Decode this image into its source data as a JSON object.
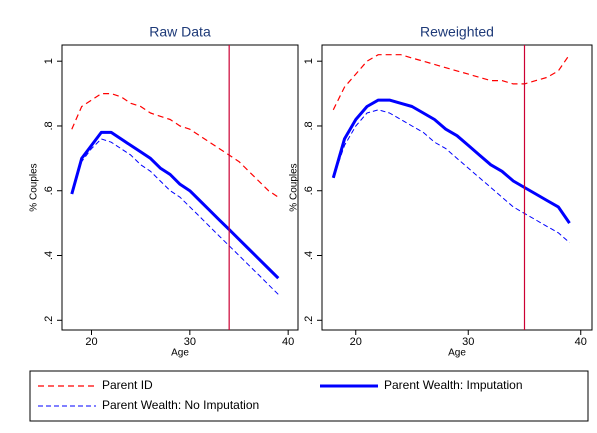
{
  "chart_data": [
    {
      "type": "line",
      "title": "Raw Data",
      "x_label": "Age",
      "y_label": "% Couples",
      "x": [
        18,
        19,
        20,
        21,
        22,
        23,
        24,
        25,
        26,
        27,
        28,
        29,
        30,
        31,
        32,
        33,
        34,
        35,
        36,
        37,
        38,
        39
      ],
      "series": [
        {
          "name": "Parent ID",
          "color": "#ff0000",
          "style": "dashed",
          "width": 1.2,
          "values": [
            0.79,
            0.86,
            0.88,
            0.9,
            0.9,
            0.89,
            0.87,
            0.86,
            0.84,
            0.83,
            0.82,
            0.8,
            0.79,
            0.77,
            0.75,
            0.73,
            0.71,
            0.69,
            0.66,
            0.63,
            0.6,
            0.58
          ]
        },
        {
          "name": "Parent Wealth: Imputation",
          "color": "#0000ff",
          "style": "solid",
          "width": 3,
          "values": [
            0.59,
            0.7,
            0.74,
            0.78,
            0.78,
            0.76,
            0.74,
            0.72,
            0.7,
            0.67,
            0.65,
            0.62,
            0.6,
            0.57,
            0.54,
            0.51,
            0.48,
            0.45,
            0.42,
            0.39,
            0.36,
            0.33
          ]
        },
        {
          "name": "Parent Wealth: No Imputation",
          "color": "#0000ff",
          "style": "dashed",
          "width": 1,
          "values": [
            0.59,
            0.69,
            0.73,
            0.76,
            0.75,
            0.73,
            0.71,
            0.68,
            0.66,
            0.63,
            0.6,
            0.58,
            0.55,
            0.52,
            0.49,
            0.46,
            0.43,
            0.4,
            0.37,
            0.34,
            0.31,
            0.28
          ]
        }
      ],
      "vline": 34,
      "vline_color": "#cc0033",
      "xlim": [
        17,
        41
      ],
      "ylim": [
        0.17,
        1.05
      ],
      "xticks": [
        20,
        30,
        40
      ],
      "yticks": [
        {
          "value": 0.2,
          "label": ".2"
        },
        {
          "value": 0.4,
          "label": ".4"
        },
        {
          "value": 0.6,
          "label": ".6"
        },
        {
          "value": 0.8,
          "label": ".8"
        },
        1
      ]
    },
    {
      "type": "line",
      "title": "Reweighted",
      "x_label": "Age",
      "y_label": "% Couples",
      "x": [
        18,
        19,
        20,
        21,
        22,
        23,
        24,
        25,
        26,
        27,
        28,
        29,
        30,
        31,
        32,
        33,
        34,
        35,
        36,
        37,
        38,
        39
      ],
      "series": [
        {
          "name": "Parent ID",
          "color": "#ff0000",
          "style": "dashed",
          "width": 1.2,
          "values": [
            0.85,
            0.92,
            0.96,
            1.0,
            1.02,
            1.02,
            1.02,
            1.01,
            1.0,
            0.99,
            0.98,
            0.97,
            0.96,
            0.95,
            0.94,
            0.94,
            0.93,
            0.93,
            0.94,
            0.95,
            0.97,
            1.02
          ]
        },
        {
          "name": "Parent Wealth: Imputation",
          "color": "#0000ff",
          "style": "solid",
          "width": 3,
          "values": [
            0.64,
            0.76,
            0.82,
            0.86,
            0.88,
            0.88,
            0.87,
            0.86,
            0.84,
            0.82,
            0.79,
            0.77,
            0.74,
            0.71,
            0.68,
            0.66,
            0.63,
            0.61,
            0.59,
            0.57,
            0.55,
            0.5
          ]
        },
        {
          "name": "Parent Wealth: No Imputation",
          "color": "#0000ff",
          "style": "dashed",
          "width": 1,
          "values": [
            0.64,
            0.74,
            0.8,
            0.84,
            0.85,
            0.84,
            0.82,
            0.8,
            0.78,
            0.75,
            0.73,
            0.7,
            0.67,
            0.64,
            0.61,
            0.58,
            0.55,
            0.53,
            0.51,
            0.49,
            0.47,
            0.44
          ]
        }
      ],
      "vline": 35,
      "vline_color": "#cc0033",
      "xlim": [
        17,
        41
      ],
      "ylim": [
        0.17,
        1.05
      ],
      "xticks": [
        20,
        30,
        40
      ],
      "yticks": [
        {
          "value": 0.2,
          "label": ".2"
        },
        {
          "value": 0.4,
          "label": ".4"
        },
        {
          "value": 0.6,
          "label": ".6"
        },
        {
          "value": 0.8,
          "label": ".8"
        },
        1
      ]
    }
  ]
}
